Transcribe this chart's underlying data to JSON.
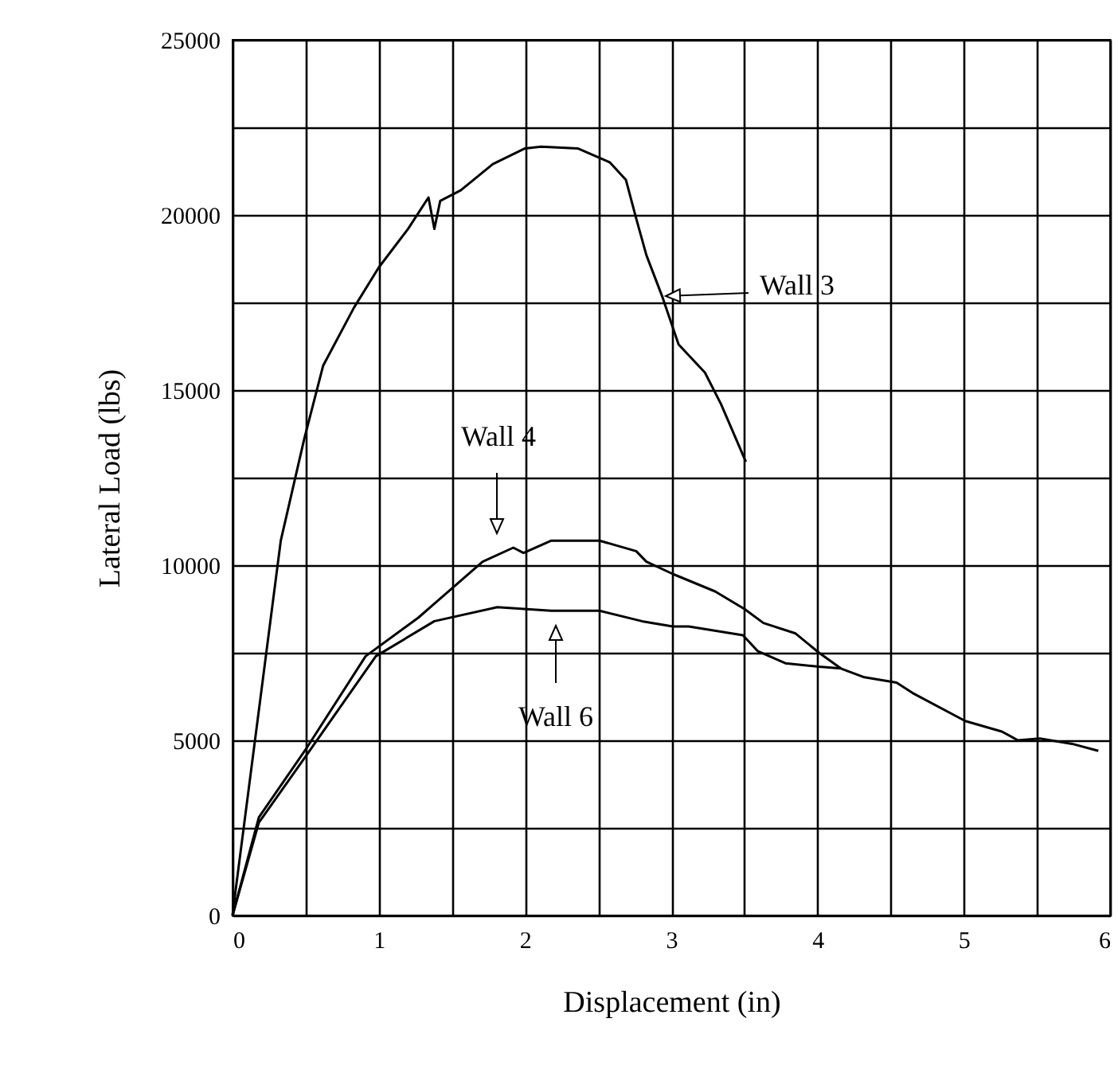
{
  "chart_data": {
    "type": "line",
    "xlabel": "Displacement (in)",
    "ylabel": "Lateral Load (lbs)",
    "xlim": [
      0,
      6
    ],
    "ylim": [
      0,
      25000
    ],
    "xticks": [
      0,
      {
        "value": 0.5,
        "label": null
      },
      1,
      {
        "value": 1.5,
        "label": null
      },
      2,
      {
        "value": 2.5,
        "label": null
      },
      3,
      {
        "value": 3.5,
        "label": null
      },
      4,
      {
        "value": 4.5,
        "label": null
      },
      5,
      {
        "value": 5.5,
        "label": null
      },
      6
    ],
    "yticks": [
      0,
      {
        "value": 2500,
        "label": null
      },
      5000,
      {
        "value": 7500,
        "label": null
      },
      10000,
      {
        "value": 12500,
        "label": null
      },
      15000,
      {
        "value": 17500,
        "label": null
      },
      20000,
      {
        "value": 22500,
        "label": null
      },
      25000
    ],
    "grid": true,
    "marker": "none",
    "line_style": "solid",
    "series": [
      {
        "color": "#000000",
        "x": [
          0,
          0.02,
          0.33,
          0.49,
          0.62,
          0.83,
          1.0,
          1.2,
          1.34,
          1.38,
          1.42,
          1.56,
          1.78,
          2.0,
          2.11,
          2.36,
          2.58,
          2.69,
          2.76,
          2.83,
          2.94,
          3.05,
          3.23,
          3.34,
          3.51
        ],
        "values": [
          0,
          680,
          10700,
          13600,
          15700,
          17350,
          18500,
          19600,
          20500,
          19600,
          20400,
          20700,
          21450,
          21900,
          21950,
          21900,
          21500,
          21000,
          19900,
          18850,
          17650,
          16300,
          15500,
          14600,
          12950
        ]
      },
      {
        "color": "#000000",
        "x": [
          0,
          0.18,
          0.51,
          0.91,
          1.27,
          1.71,
          1.92,
          1.99,
          2.18,
          2.51,
          2.76,
          2.83,
          3.01,
          3.3,
          3.5,
          3.63,
          3.85,
          4.01,
          4.16
        ],
        "values": [
          0,
          2800,
          4800,
          7400,
          8500,
          10100,
          10500,
          10350,
          10700,
          10700,
          10400,
          10100,
          9750,
          9250,
          8750,
          8350,
          8050,
          7500,
          7050
        ]
      },
      {
        "color": "#000000",
        "x": [
          0,
          0.18,
          0.51,
          0.98,
          1.38,
          1.81,
          2.18,
          2.51,
          2.8,
          3.01,
          3.12,
          3.49,
          3.59,
          3.78,
          4.01,
          4.16,
          4.32,
          4.54,
          4.65,
          5.01,
          5.26,
          5.37,
          5.52,
          5.74,
          5.92
        ],
        "values": [
          0,
          2650,
          4600,
          7400,
          8400,
          8800,
          8700,
          8700,
          8400,
          8250,
          8250,
          8000,
          7550,
          7200,
          7100,
          7050,
          6800,
          6650,
          6350,
          5550,
          5250,
          5000,
          5050,
          4900,
          4700
        ]
      }
    ],
    "annotations": [
      "Wall 3",
      "Wall 4",
      "Wall 6"
    ]
  }
}
